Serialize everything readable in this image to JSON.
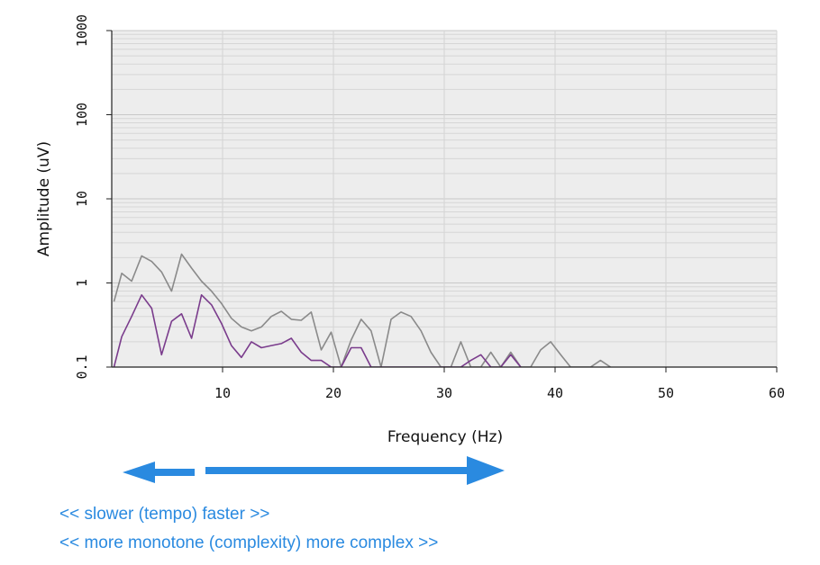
{
  "chart_data": {
    "type": "line",
    "title": "",
    "xlabel": "Frequency (Hz)",
    "ylabel": "Amplitude (uV)",
    "xlim": [
      0,
      60
    ],
    "ylim": [
      0.1,
      1000
    ],
    "yscale": "log",
    "grid": true,
    "x_ticks": [
      10,
      20,
      30,
      40,
      50,
      60
    ],
    "x_tick_labels": [
      "10",
      "20",
      "30",
      "40",
      "50",
      "60"
    ],
    "y_ticks": [
      0.1,
      1,
      10,
      100,
      1000
    ],
    "y_tick_labels": [
      "0.1",
      "1",
      "10",
      "100",
      "1000"
    ],
    "series": [
      {
        "color": "#8a8a8a",
        "points": [
          [
            0.2,
            0.6
          ],
          [
            0.9,
            1.3
          ],
          [
            1.8,
            1.05
          ],
          [
            2.7,
            2.1
          ],
          [
            3.6,
            1.8
          ],
          [
            4.5,
            1.35
          ],
          [
            5.4,
            0.8
          ],
          [
            6.3,
            2.2
          ],
          [
            7.2,
            1.5
          ],
          [
            8.1,
            1.05
          ],
          [
            9.0,
            0.8
          ],
          [
            9.9,
            0.57
          ],
          [
            10.8,
            0.38
          ],
          [
            11.7,
            0.3
          ],
          [
            12.6,
            0.27
          ],
          [
            13.5,
            0.3
          ],
          [
            14.4,
            0.4
          ],
          [
            15.3,
            0.46
          ],
          [
            16.2,
            0.37
          ],
          [
            17.1,
            0.36
          ],
          [
            18.0,
            0.45
          ],
          [
            18.9,
            0.16
          ],
          [
            19.8,
            0.26
          ],
          [
            20.7,
            0.1
          ],
          [
            21.6,
            0.21
          ],
          [
            22.5,
            0.37
          ],
          [
            23.4,
            0.27
          ],
          [
            24.3,
            0.1
          ],
          [
            25.2,
            0.37
          ],
          [
            26.1,
            0.45
          ],
          [
            27.0,
            0.4
          ],
          [
            27.9,
            0.27
          ],
          [
            28.8,
            0.15
          ],
          [
            29.7,
            0.1
          ],
          [
            30.6,
            0.1
          ],
          [
            31.5,
            0.2
          ],
          [
            32.4,
            0.1
          ],
          [
            33.3,
            0.1
          ],
          [
            34.2,
            0.15
          ],
          [
            35.1,
            0.1
          ],
          [
            36.0,
            0.15
          ],
          [
            36.9,
            0.1
          ],
          [
            37.8,
            0.1
          ],
          [
            38.7,
            0.16
          ],
          [
            39.6,
            0.2
          ],
          [
            40.5,
            0.14
          ],
          [
            41.4,
            0.1
          ],
          [
            42.3,
            0.1
          ],
          [
            43.2,
            0.1
          ],
          [
            44.1,
            0.12
          ],
          [
            45.0,
            0.1
          ]
        ]
      },
      {
        "color": "#7a3c8c",
        "points": [
          [
            0.2,
            0.1
          ],
          [
            0.9,
            0.23
          ],
          [
            1.8,
            0.4
          ],
          [
            2.7,
            0.72
          ],
          [
            3.6,
            0.5
          ],
          [
            4.5,
            0.14
          ],
          [
            5.4,
            0.35
          ],
          [
            6.3,
            0.43
          ],
          [
            7.2,
            0.22
          ],
          [
            8.1,
            0.72
          ],
          [
            9.0,
            0.55
          ],
          [
            9.9,
            0.33
          ],
          [
            10.8,
            0.18
          ],
          [
            11.7,
            0.13
          ],
          [
            12.6,
            0.2
          ],
          [
            13.5,
            0.17
          ],
          [
            14.4,
            0.18
          ],
          [
            15.3,
            0.19
          ],
          [
            16.2,
            0.22
          ],
          [
            17.1,
            0.15
          ],
          [
            18.0,
            0.12
          ],
          [
            18.9,
            0.12
          ],
          [
            19.8,
            0.1
          ],
          [
            20.7,
            0.1
          ],
          [
            21.6,
            0.17
          ],
          [
            22.5,
            0.17
          ],
          [
            23.4,
            0.1
          ],
          [
            24.3,
            0.1
          ],
          [
            25.2,
            0.1
          ],
          [
            26.1,
            0.1
          ],
          [
            27.0,
            0.1
          ],
          [
            27.9,
            0.1
          ],
          [
            28.8,
            0.1
          ],
          [
            29.7,
            0.1
          ],
          [
            30.6,
            0.1
          ],
          [
            31.5,
            0.1
          ],
          [
            32.4,
            0.12
          ],
          [
            33.3,
            0.14
          ],
          [
            34.2,
            0.1
          ],
          [
            35.1,
            0.1
          ],
          [
            36.0,
            0.14
          ],
          [
            36.9,
            0.1
          ]
        ]
      }
    ]
  },
  "annotation": {
    "arrow_color": "#2a8ae0",
    "caption_1": "<< slower (tempo) faster >>",
    "caption_2": "<< more monotone (complexity) more complex >>"
  }
}
